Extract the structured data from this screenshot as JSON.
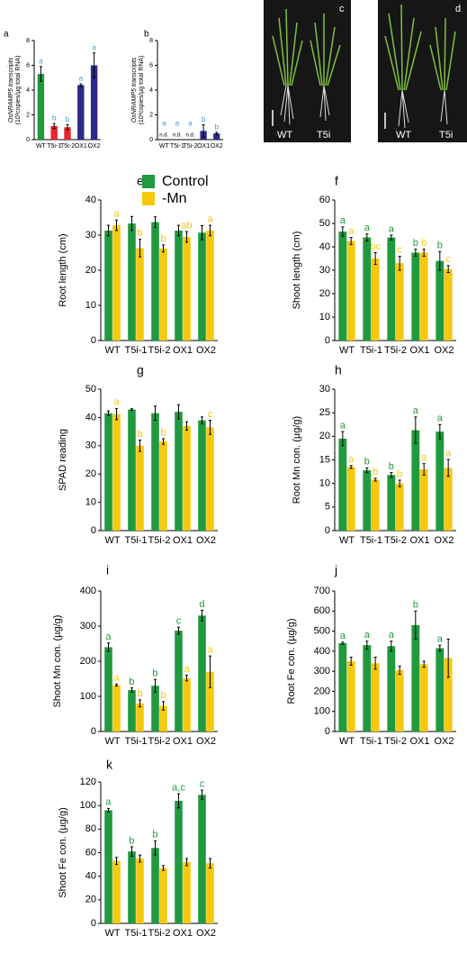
{
  "chart_data": [
    {
      "type": "bar",
      "panel": "a",
      "ylabel": [
        "OsNRAMP5 transcripts",
        "(10³copies/µg total RNA)"
      ],
      "categories": [
        "WT",
        "T5i-1",
        "T5i-2",
        "OX1",
        "OX2"
      ],
      "values": [
        5.3,
        1.1,
        1.0,
        4.4,
        6.0
      ],
      "errors": [
        0.6,
        0.2,
        0.2,
        0.1,
        1.0
      ],
      "colors": [
        "#1f9a3f",
        "#e8262c",
        "#e8262c",
        "#2b2a8c",
        "#2b2a8c"
      ],
      "letters": [
        "a",
        "b",
        "b",
        "a",
        "a"
      ],
      "letter_color": "#3d9fd0",
      "ylim": [
        0,
        8
      ],
      "yticks": [
        0,
        2,
        4,
        6,
        8
      ]
    },
    {
      "type": "bar",
      "panel": "b",
      "ylabel": [
        "OsNRAMP5 transcripts",
        "(10³copies/µg total RNA)"
      ],
      "categories": [
        "WT",
        "T5i-1",
        "T5i-2",
        "OX1",
        "OX2"
      ],
      "values": [
        null,
        null,
        null,
        0.7,
        0.5
      ],
      "errors": [
        null,
        null,
        null,
        0.5,
        0.1
      ],
      "value_labels": [
        "n.d.",
        "n.d.",
        "n.d.",
        null,
        null
      ],
      "colors": [
        "#1f9a3f",
        "#e8262c",
        "#e8262c",
        "#2b2a8c",
        "#2b2a8c"
      ],
      "letters": [
        "a",
        "a",
        "a",
        "b",
        "b"
      ],
      "letter_color": "#3d9fd0",
      "ylim": [
        0,
        8
      ],
      "yticks": [
        0,
        2,
        4,
        6,
        8
      ]
    },
    {
      "type": "bar",
      "panel": "e",
      "ylabel": "Root length (cm)",
      "categories": [
        "WT",
        "T5i-1",
        "T5i-2",
        "OX1",
        "OX2"
      ],
      "series": [
        {
          "name": "Control",
          "color": "#1f9a3f",
          "values": [
            31.3,
            33.3,
            33.7,
            31.3,
            30.7
          ],
          "errors": [
            1.5,
            2,
            1.5,
            1.5,
            2
          ],
          "letters": [
            null,
            null,
            null,
            null,
            null
          ]
        },
        {
          "name": "-Mn",
          "color": "#f6c80f",
          "values": [
            32.8,
            26.3,
            26.2,
            29.5,
            31.3
          ],
          "errors": [
            1.5,
            2.5,
            1,
            1.5,
            1.5
          ],
          "letters": [
            "a",
            "b",
            "b",
            "ab",
            "a"
          ]
        }
      ],
      "ylim": [
        0,
        40
      ],
      "yticks": [
        0,
        10,
        20,
        30,
        40
      ]
    },
    {
      "type": "bar",
      "panel": "f",
      "ylabel": "Shoot length (cm)",
      "categories": [
        "WT",
        "T5i-1",
        "T5i-2",
        "OX1",
        "OX2"
      ],
      "series": [
        {
          "color": "#1f9a3f",
          "values": [
            46.5,
            44,
            44,
            37.5,
            34
          ],
          "errors": [
            2,
            1.5,
            1,
            1.5,
            4
          ],
          "letters": [
            "a",
            "a",
            "a",
            "b",
            "b"
          ]
        },
        {
          "color": "#f6c80f",
          "values": [
            42.5,
            35,
            33,
            37.5,
            30.5
          ],
          "errors": [
            1.5,
            2.5,
            3,
            1.5,
            1.5
          ],
          "letters": [
            "a",
            "bc",
            "c",
            "b",
            "c"
          ]
        }
      ],
      "ylim": [
        0,
        60
      ],
      "yticks": [
        0,
        10,
        20,
        30,
        40,
        50,
        60
      ]
    },
    {
      "type": "bar",
      "panel": "g",
      "ylabel": "SPAD reading",
      "categories": [
        "WT",
        "T5i-1",
        "T5i-2",
        "OX1",
        "OX2"
      ],
      "series": [
        {
          "color": "#1f9a3f",
          "values": [
            41.5,
            42.8,
            41.5,
            42,
            39
          ],
          "errors": [
            0.8,
            0.3,
            2.5,
            2.5,
            1.2
          ],
          "letters": [
            null,
            null,
            null,
            null,
            null
          ]
        },
        {
          "color": "#f6c80f",
          "values": [
            41.2,
            30,
            31.5,
            37,
            36.5
          ],
          "errors": [
            2,
            2,
            1,
            1.5,
            2.5
          ],
          "letters": [
            "a",
            "b",
            "b",
            null,
            "c"
          ]
        }
      ],
      "ylim": [
        0,
        50
      ],
      "yticks": [
        0,
        10,
        20,
        30,
        40,
        50
      ]
    },
    {
      "type": "bar",
      "panel": "h",
      "ylabel": "Root Mn con. (µg/g)",
      "categories": [
        "WT",
        "T5i-1",
        "T5i-2",
        "OX1",
        "OX2"
      ],
      "series": [
        {
          "color": "#1f9a3f",
          "values": [
            19.5,
            12.8,
            11.8,
            21.3,
            21
          ],
          "errors": [
            1.5,
            0.5,
            0.5,
            2.8,
            1.5
          ],
          "letters": [
            "a",
            "b",
            "b",
            "a",
            "a"
          ]
        },
        {
          "color": "#f6c80f",
          "values": [
            13.5,
            10.8,
            10,
            13,
            13.3
          ],
          "errors": [
            0.3,
            0.3,
            0.7,
            1.2,
            1.8
          ],
          "letters": [
            "a",
            "b",
            "b",
            "a",
            "a"
          ]
        }
      ],
      "ylim": [
        0,
        30
      ],
      "yticks": [
        0,
        5,
        10,
        15,
        20,
        25,
        30
      ]
    },
    {
      "type": "bar",
      "panel": "i",
      "ylabel": "Shoot Mn con. (µg/g)",
      "categories": [
        "WT",
        "T5i-1",
        "T5i-2",
        "OX1",
        "OX2"
      ],
      "series": [
        {
          "color": "#1f9a3f",
          "values": [
            240,
            118,
            130,
            287,
            330
          ],
          "errors": [
            12,
            6,
            18,
            10,
            15
          ],
          "letters": [
            "a",
            "b",
            "b",
            "c",
            "d"
          ]
        },
        {
          "color": "#f6c80f",
          "values": [
            132,
            80,
            73,
            152,
            170
          ],
          "errors": [
            3,
            10,
            12,
            8,
            45
          ],
          "letters": [
            "a",
            "b",
            "b",
            "a",
            "a"
          ]
        }
      ],
      "ylim": [
        0,
        400
      ],
      "yticks": [
        0,
        100,
        200,
        300,
        400
      ]
    },
    {
      "type": "bar",
      "panel": "j",
      "ylabel": "Root Fe con. (µg/g)",
      "categories": [
        "WT",
        "T5i-1",
        "T5i-2",
        "OX1",
        "OX2"
      ],
      "series": [
        {
          "color": "#1f9a3f",
          "values": [
            440,
            430,
            425,
            530,
            415
          ],
          "errors": [
            5,
            20,
            25,
            70,
            15
          ],
          "letters": [
            "a",
            "a",
            "a",
            "b",
            "a"
          ]
        },
        {
          "color": "#f6c80f",
          "values": [
            350,
            340,
            305,
            335,
            365
          ],
          "errors": [
            20,
            30,
            20,
            15,
            95
          ],
          "letters": [
            null,
            null,
            null,
            null,
            null
          ]
        }
      ],
      "ylim": [
        0,
        700
      ],
      "yticks": [
        0,
        100,
        200,
        300,
        400,
        500,
        600,
        700
      ]
    },
    {
      "type": "bar",
      "panel": "k",
      "ylabel": "Shoot Fe con. (µg/g)",
      "categories": [
        "WT",
        "T5i-1",
        "T5i-2",
        "OX1",
        "OX2"
      ],
      "series": [
        {
          "color": "#1f9a3f",
          "values": [
            96,
            61,
            64,
            104,
            109
          ],
          "errors": [
            1.5,
            4,
            6,
            6,
            4
          ],
          "letters": [
            "a",
            "b",
            "b",
            "a,c",
            "c"
          ]
        },
        {
          "color": "#f6c80f",
          "values": [
            53,
            55,
            47,
            52,
            51
          ],
          "errors": [
            3,
            3,
            2,
            3,
            4
          ],
          "letters": [
            null,
            null,
            null,
            null,
            null
          ]
        }
      ],
      "ylim": [
        0,
        120
      ],
      "yticks": [
        0,
        20,
        40,
        60,
        80,
        100,
        120
      ]
    }
  ],
  "photos": [
    {
      "panel": "c",
      "labels": [
        "WT",
        "T5i"
      ]
    },
    {
      "panel": "d",
      "labels": [
        "WT",
        "T5i"
      ]
    }
  ]
}
